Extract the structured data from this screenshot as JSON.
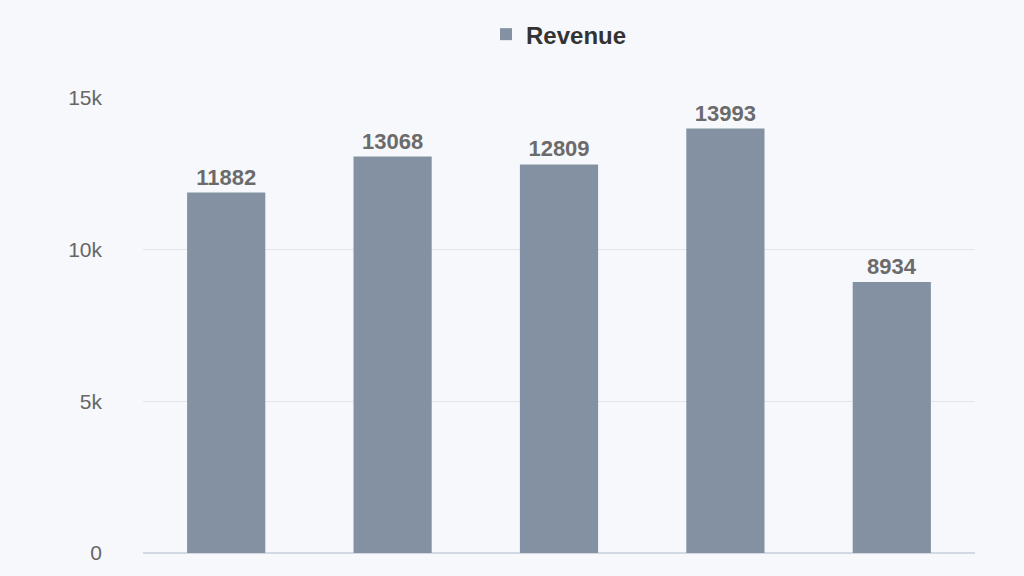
{
  "chart_data": {
    "type": "bar",
    "categories": [
      null,
      null,
      null,
      null,
      null
    ],
    "series": [
      {
        "name": "Revenue",
        "color": "#8391a3",
        "values": [
          11882,
          13068,
          12809,
          13993,
          8934
        ]
      }
    ],
    "ylim": [
      0,
      15000
    ],
    "yticks": [
      0,
      {
        "value": 5000,
        "label": "5k"
      },
      {
        "value": 10000,
        "label": "10k"
      },
      {
        "value": 15000,
        "label": "15k"
      }
    ],
    "grid": true,
    "legend": "top",
    "data_labels": true,
    "tick_labels": "y"
  }
}
